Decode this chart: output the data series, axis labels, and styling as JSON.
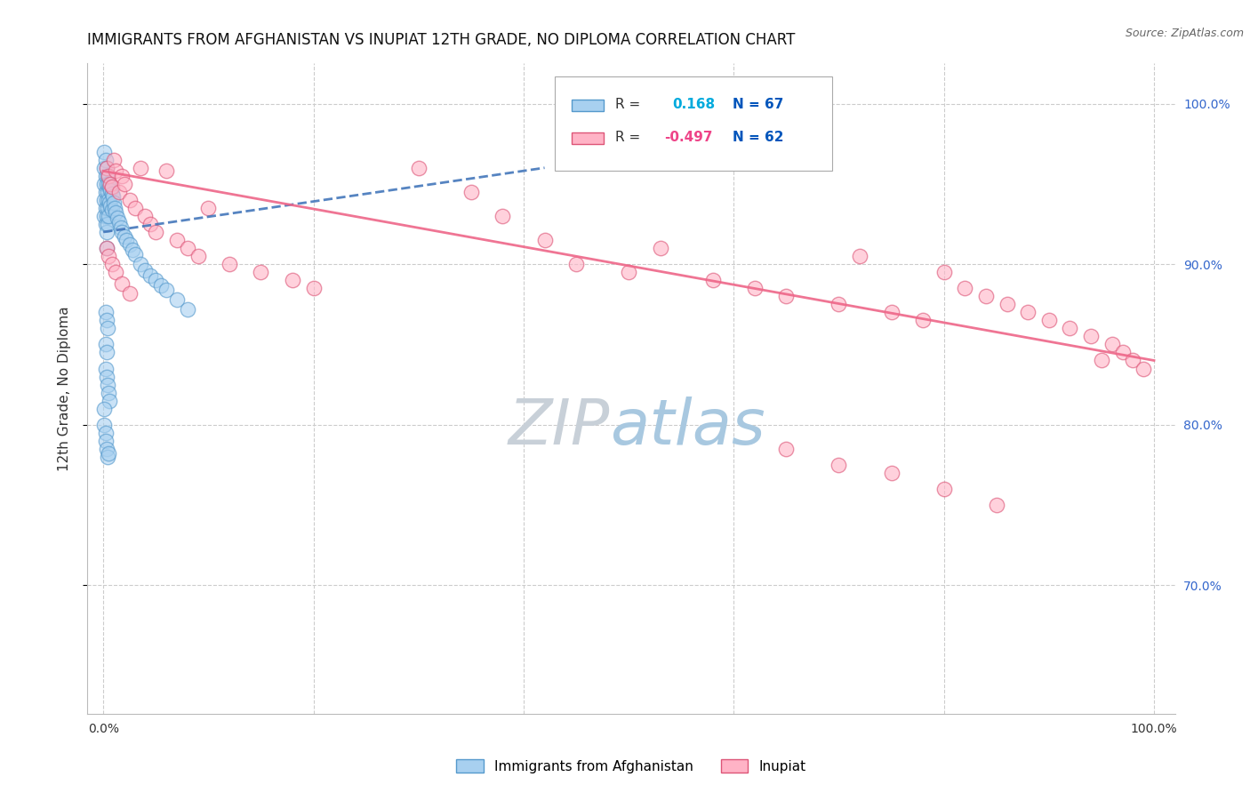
{
  "title": "IMMIGRANTS FROM AFGHANISTAN VS INUPIAT 12TH GRADE, NO DIPLOMA CORRELATION CHART",
  "source_text": "Source: ZipAtlas.com",
  "ylabel": "12th Grade, No Diploma",
  "legend_label1": "Immigrants from Afghanistan",
  "legend_label2": "Inupiat",
  "legend_r1_text": "R = ",
  "legend_v1": "0.168",
  "legend_n1": "N = 67",
  "legend_r2_text": "R = ",
  "legend_v2": "-0.497",
  "legend_n2": "N = 62",
  "blue_color": "#a8d0f0",
  "pink_color": "#ffb3c6",
  "blue_line_color": "#4477bb",
  "pink_line_color": "#ee6688",
  "blue_edge_color": "#5599cc",
  "pink_edge_color": "#dd5577",
  "watermark_zip_color": "#c8d8e8",
  "watermark_atlas_color": "#b8ccdd",
  "title_fontsize": 12,
  "axis_label_fontsize": 11,
  "tick_fontsize": 10,
  "source_fontsize": 9,
  "legend_fontsize": 11,
  "background_color": "#ffffff",
  "grid_color": "#cccccc",
  "xlim": [
    -0.015,
    1.02
  ],
  "ylim": [
    0.62,
    1.025
  ],
  "yticks": [
    0.7,
    0.8,
    0.9,
    1.0
  ],
  "ytick_labels": [
    "70.0%",
    "80.0%",
    "90.0%",
    "100.0%"
  ],
  "xticks": [
    0.0,
    0.2,
    0.4,
    0.6,
    0.8,
    1.0
  ],
  "xtick_labels_show": [
    "0.0%",
    "",
    "",
    "",
    "",
    "100.0%"
  ],
  "blue_trend_x": [
    0.0,
    0.42
  ],
  "blue_trend_y": [
    0.92,
    0.96
  ],
  "pink_trend_x": [
    0.0,
    1.0
  ],
  "pink_trend_y": [
    0.958,
    0.84
  ],
  "blue_x": [
    0.001,
    0.001,
    0.001,
    0.001,
    0.001,
    0.002,
    0.002,
    0.002,
    0.002,
    0.002,
    0.003,
    0.003,
    0.003,
    0.003,
    0.003,
    0.003,
    0.004,
    0.004,
    0.004,
    0.004,
    0.005,
    0.005,
    0.005,
    0.006,
    0.006,
    0.007,
    0.007,
    0.008,
    0.008,
    0.009,
    0.01,
    0.011,
    0.012,
    0.013,
    0.015,
    0.017,
    0.018,
    0.02,
    0.022,
    0.025,
    0.028,
    0.03,
    0.035,
    0.04,
    0.045,
    0.05,
    0.055,
    0.06,
    0.07,
    0.08,
    0.002,
    0.003,
    0.004,
    0.002,
    0.003,
    0.002,
    0.003,
    0.004,
    0.005,
    0.006,
    0.001,
    0.001,
    0.002,
    0.002,
    0.003,
    0.004,
    0.005
  ],
  "blue_y": [
    0.97,
    0.96,
    0.95,
    0.94,
    0.93,
    0.965,
    0.955,
    0.945,
    0.935,
    0.925,
    0.96,
    0.95,
    0.94,
    0.93,
    0.92,
    0.91,
    0.955,
    0.945,
    0.935,
    0.925,
    0.95,
    0.94,
    0.93,
    0.948,
    0.938,
    0.946,
    0.936,
    0.944,
    0.934,
    0.942,
    0.938,
    0.935,
    0.932,
    0.929,
    0.926,
    0.923,
    0.92,
    0.917,
    0.915,
    0.912,
    0.909,
    0.906,
    0.9,
    0.896,
    0.893,
    0.89,
    0.887,
    0.884,
    0.878,
    0.872,
    0.87,
    0.865,
    0.86,
    0.85,
    0.845,
    0.835,
    0.83,
    0.825,
    0.82,
    0.815,
    0.81,
    0.8,
    0.795,
    0.79,
    0.785,
    0.78,
    0.782
  ],
  "pink_x": [
    0.003,
    0.005,
    0.007,
    0.008,
    0.01,
    0.012,
    0.015,
    0.018,
    0.02,
    0.025,
    0.03,
    0.035,
    0.04,
    0.045,
    0.05,
    0.06,
    0.07,
    0.08,
    0.09,
    0.1,
    0.12,
    0.15,
    0.18,
    0.2,
    0.003,
    0.005,
    0.008,
    0.012,
    0.018,
    0.025,
    0.3,
    0.35,
    0.38,
    0.42,
    0.45,
    0.5,
    0.53,
    0.58,
    0.62,
    0.65,
    0.7,
    0.72,
    0.75,
    0.78,
    0.8,
    0.82,
    0.84,
    0.86,
    0.88,
    0.9,
    0.92,
    0.94,
    0.96,
    0.97,
    0.98,
    0.99,
    0.65,
    0.7,
    0.75,
    0.8,
    0.85,
    0.95
  ],
  "pink_y": [
    0.96,
    0.955,
    0.95,
    0.948,
    0.965,
    0.958,
    0.945,
    0.955,
    0.95,
    0.94,
    0.935,
    0.96,
    0.93,
    0.925,
    0.92,
    0.958,
    0.915,
    0.91,
    0.905,
    0.935,
    0.9,
    0.895,
    0.89,
    0.885,
    0.91,
    0.905,
    0.9,
    0.895,
    0.888,
    0.882,
    0.96,
    0.945,
    0.93,
    0.915,
    0.9,
    0.895,
    0.91,
    0.89,
    0.885,
    0.88,
    0.875,
    0.905,
    0.87,
    0.865,
    0.895,
    0.885,
    0.88,
    0.875,
    0.87,
    0.865,
    0.86,
    0.855,
    0.85,
    0.845,
    0.84,
    0.835,
    0.785,
    0.775,
    0.77,
    0.76,
    0.75,
    0.84
  ]
}
